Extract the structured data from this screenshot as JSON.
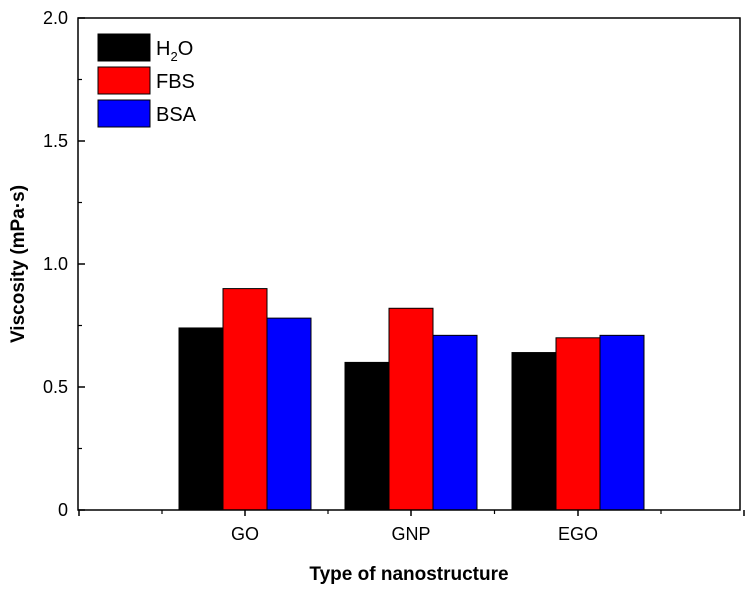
{
  "chart_data": {
    "type": "bar",
    "categories": [
      "GO",
      "GNP",
      "EGO"
    ],
    "series": [
      {
        "name": "H2O",
        "values": [
          0.74,
          0.6,
          0.64
        ],
        "color": "#000000"
      },
      {
        "name": "FBS",
        "values": [
          0.9,
          0.82,
          0.7
        ],
        "color": "#ff0000"
      },
      {
        "name": "BSA",
        "values": [
          0.78,
          0.71,
          0.71
        ],
        "color": "#0000ff"
      }
    ],
    "title": "",
    "xlabel": "Type of nanostructure",
    "ylabel": "Viscosity (mPa·s)",
    "ylim": [
      0,
      2.0
    ],
    "yticks": [
      "0",
      "0.5",
      "1.0",
      "1.5",
      "2.0"
    ],
    "ytick_values": [
      0,
      0.5,
      1.0,
      1.5,
      2.0
    ],
    "grid": false,
    "legend_position": "top-left"
  }
}
